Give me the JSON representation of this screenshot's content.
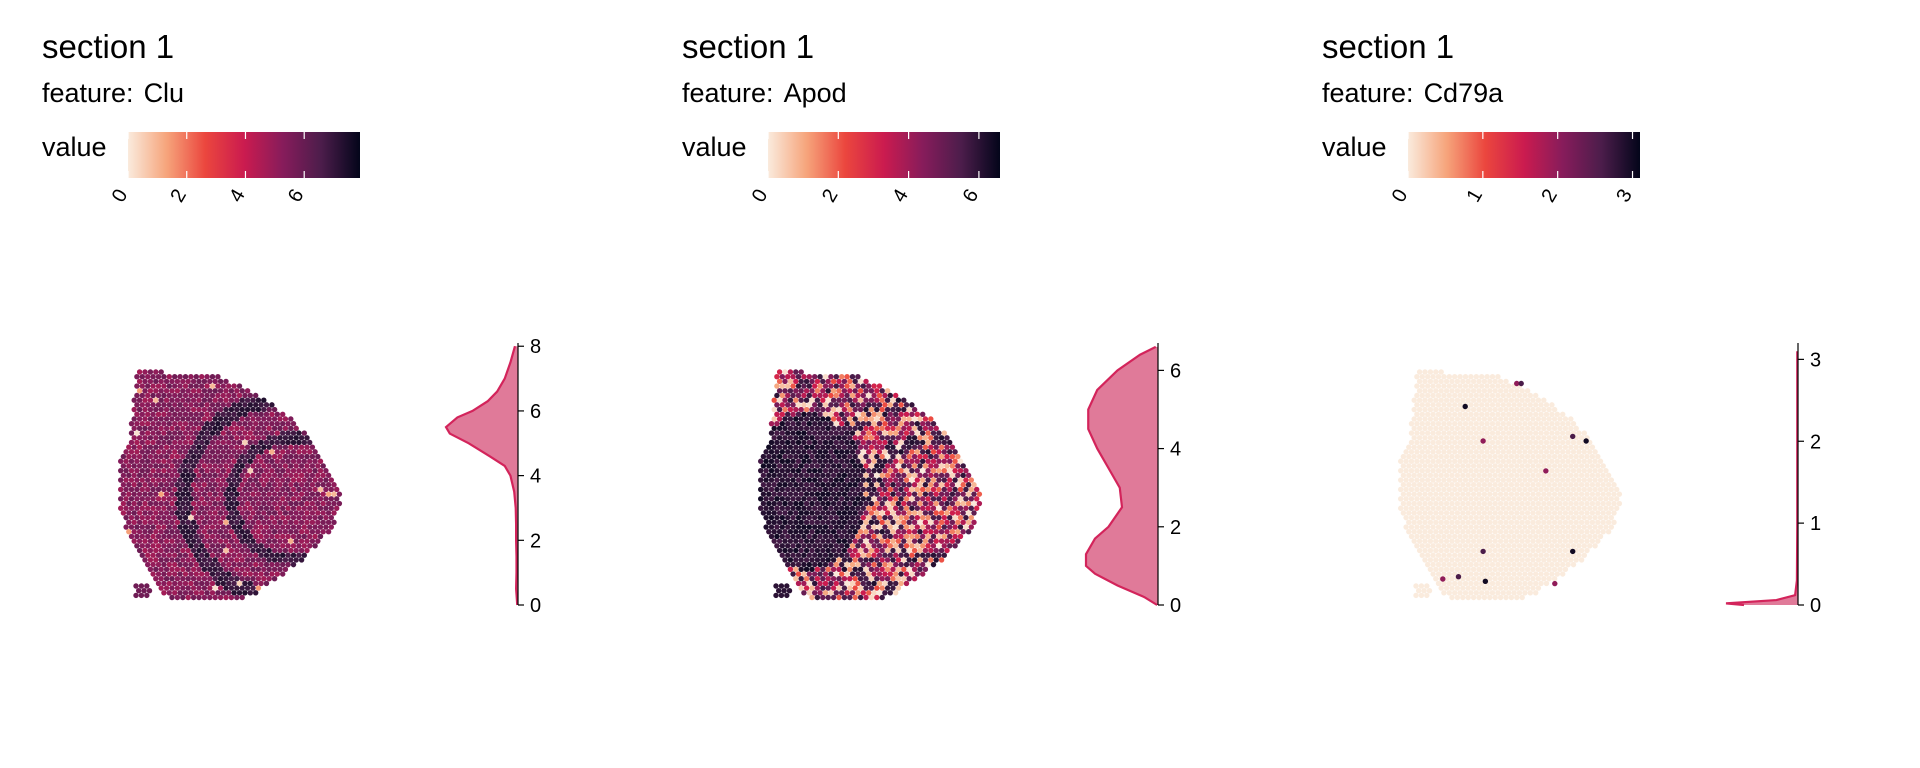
{
  "colormap": [
    "#faebdd",
    "#f6a47b",
    "#eb463e",
    "#cb1b4f",
    "#871c5b",
    "#4c1d4b",
    "#03051a"
  ],
  "accent_color": "#d3245b",
  "density_fill": "#e07a99",
  "chart_data": [
    {
      "type": "spatial-heatmap",
      "title": "section 1",
      "subtitle_prefix": "feature:",
      "feature": "Clu",
      "legend_label": "value",
      "color_range": [
        0,
        7.9
      ],
      "color_ticks": [
        0,
        2,
        4,
        6
      ],
      "density_axis": {
        "ticks": [
          0,
          2,
          4,
          6,
          8
        ],
        "range": [
          0,
          8.1
        ]
      },
      "density_profile": [
        [
          0,
          0.02
        ],
        [
          0.5,
          0.05
        ],
        [
          1,
          0.04
        ],
        [
          1.5,
          0.04
        ],
        [
          2,
          0.05
        ],
        [
          2.5,
          0.05
        ],
        [
          3,
          0.06
        ],
        [
          3.5,
          0.1
        ],
        [
          4,
          0.2
        ],
        [
          4.3,
          0.35
        ],
        [
          4.6,
          0.75
        ],
        [
          5,
          1.3
        ],
        [
          5.3,
          1.8
        ],
        [
          5.5,
          1.9
        ],
        [
          5.8,
          1.6
        ],
        [
          6,
          1.2
        ],
        [
          6.3,
          0.8
        ],
        [
          6.6,
          0.55
        ],
        [
          7,
          0.35
        ],
        [
          7.5,
          0.2
        ],
        [
          8,
          0.08
        ]
      ],
      "spot_value_model": {
        "base": 5.3,
        "spread": 0.6,
        "band_value": 7.0,
        "low_fraction": 0.01
      }
    },
    {
      "type": "spatial-heatmap",
      "title": "section 1",
      "subtitle_prefix": "feature:",
      "feature": "Apod",
      "legend_label": "value",
      "color_range": [
        0,
        6.6
      ],
      "color_ticks": [
        0,
        2,
        4,
        6
      ],
      "density_axis": {
        "ticks": [
          0,
          2,
          4,
          6
        ],
        "range": [
          0,
          6.7
        ]
      },
      "density_profile": [
        [
          0,
          0.02
        ],
        [
          0.2,
          0.3
        ],
        [
          0.5,
          0.9
        ],
        [
          0.8,
          1.4
        ],
        [
          1,
          1.6
        ],
        [
          1.3,
          1.6
        ],
        [
          1.7,
          1.4
        ],
        [
          2,
          1.1
        ],
        [
          2.5,
          0.8
        ],
        [
          3,
          0.85
        ],
        [
          3.5,
          1.1
        ],
        [
          4,
          1.35
        ],
        [
          4.5,
          1.55
        ],
        [
          5,
          1.55
        ],
        [
          5.5,
          1.35
        ],
        [
          6,
          0.9
        ],
        [
          6.4,
          0.4
        ],
        [
          6.6,
          0.05
        ]
      ],
      "spot_value_model": {
        "base": 4.5,
        "spread": 1.5,
        "band_value": 5.8,
        "low_fraction": 0.35
      }
    },
    {
      "type": "spatial-heatmap",
      "title": "section 1",
      "subtitle_prefix": "feature:",
      "feature": "Cd79a",
      "legend_label": "value",
      "color_range": [
        0,
        3.1
      ],
      "color_ticks": [
        0,
        1,
        2,
        3
      ],
      "density_axis": {
        "ticks": [
          0,
          1,
          2,
          3
        ],
        "range": [
          0,
          3.2
        ]
      },
      "density_profile": [
        [
          0,
          1.5
        ],
        [
          0.02,
          2.0
        ],
        [
          0.06,
          0.6
        ],
        [
          0.12,
          0.08
        ],
        [
          0.3,
          0.03
        ],
        [
          1,
          0.02
        ],
        [
          2,
          0.02
        ],
        [
          3,
          0.02
        ],
        [
          3.1,
          0.02
        ]
      ],
      "spot_value_model": {
        "base": 0.0,
        "spread": 0.0,
        "band_value": 0.0,
        "low_fraction": 0.0
      },
      "highlight_spots": [
        [
          0.53,
          0.05
        ],
        [
          0.55,
          0.05
        ],
        [
          0.3,
          0.15
        ],
        [
          0.38,
          0.3
        ],
        [
          0.78,
          0.28
        ],
        [
          0.84,
          0.3
        ],
        [
          0.66,
          0.43
        ],
        [
          0.38,
          0.78
        ],
        [
          0.78,
          0.78
        ],
        [
          0.2,
          0.9
        ],
        [
          0.27,
          0.89
        ],
        [
          0.39,
          0.91
        ],
        [
          0.7,
          0.92
        ]
      ]
    }
  ]
}
